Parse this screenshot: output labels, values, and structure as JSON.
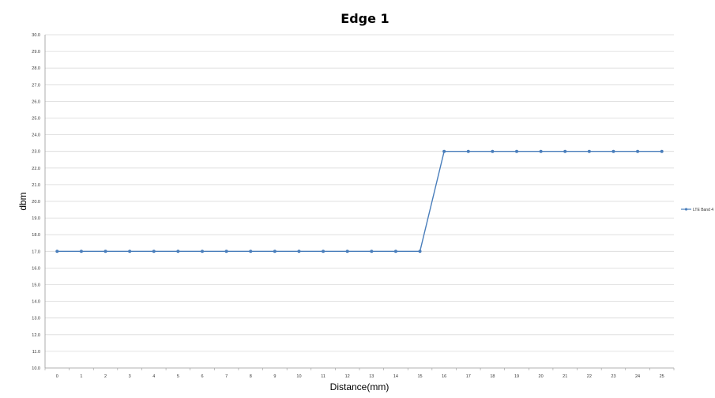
{
  "chart_data": {
    "type": "line",
    "title": "Edge 1",
    "xlabel": "Distance(mm)",
    "ylabel": "dbm",
    "x": [
      0,
      1,
      2,
      3,
      4,
      5,
      6,
      7,
      8,
      9,
      10,
      11,
      12,
      13,
      14,
      15,
      16,
      17,
      18,
      19,
      20,
      21,
      22,
      23,
      24,
      25
    ],
    "ylim": [
      10.0,
      30.0
    ],
    "ystep": 1.0,
    "grid": true,
    "legend_position": "right",
    "series": [
      {
        "name": "LTE Band 4",
        "color": "#4a7ebb",
        "values": [
          17.0,
          17.0,
          17.0,
          17.0,
          17.0,
          17.0,
          17.0,
          17.0,
          17.0,
          17.0,
          17.0,
          17.0,
          17.0,
          17.0,
          17.0,
          17.0,
          23.0,
          23.0,
          23.0,
          23.0,
          23.0,
          23.0,
          23.0,
          23.0,
          23.0,
          23.0
        ]
      }
    ]
  }
}
